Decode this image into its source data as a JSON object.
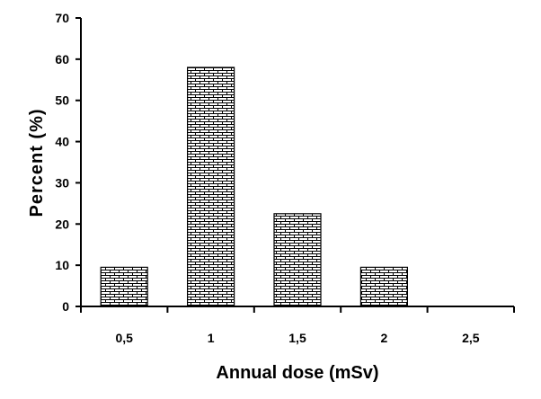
{
  "chart_data": {
    "type": "bar",
    "categories": [
      "0,5",
      "1",
      "1,5",
      "2",
      "2,5"
    ],
    "values": [
      9.5,
      58,
      22.5,
      9.5,
      0
    ],
    "xlabel": "Annual dose (mSv)",
    "ylabel": "Percent (%)",
    "ylim": [
      0,
      70
    ],
    "yticks": [
      "0",
      "10",
      "20",
      "30",
      "40",
      "50",
      "60",
      "70"
    ],
    "grid": false,
    "legend": "none",
    "bar_fill": "brick-hatch",
    "colors": {
      "bar_stroke": "#000000",
      "hatch": "#000000",
      "background": "#ffffff",
      "axis": "#000000"
    }
  }
}
